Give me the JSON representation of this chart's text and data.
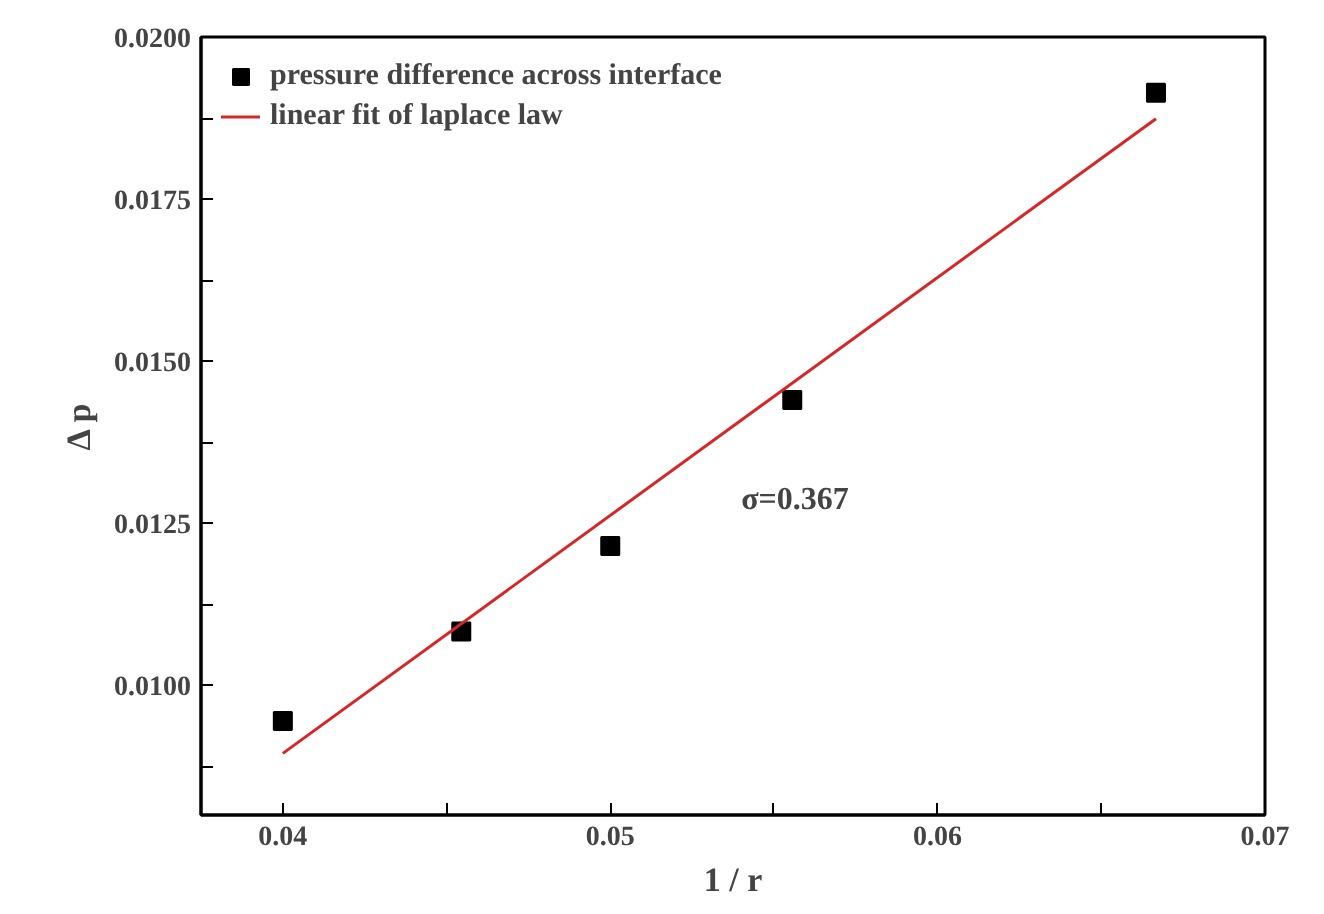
{
  "chart_data": {
    "type": "scatter",
    "xlabel": "1 / r",
    "ylabel": "Δ p",
    "xlim": [
      0.0375,
      0.07
    ],
    "ylim": [
      0.008,
      0.02
    ],
    "xticks": [
      0.04,
      {
        "value": 0.045,
        "label": null
      },
      0.05,
      {
        "value": 0.055,
        "label": null
      },
      0.06,
      {
        "value": 0.065,
        "label": null
      },
      0.07
    ],
    "yticks": [
      {
        "value": 0.00875,
        "label": null
      },
      {
        "value": 0.01,
        "label": "0.0100"
      },
      {
        "value": 0.01125,
        "label": null
      },
      0.0125,
      {
        "value": 0.01375,
        "label": null
      },
      {
        "value": 0.015,
        "label": "0.0150"
      },
      {
        "value": 0.01625,
        "label": null
      },
      0.0175,
      {
        "value": 0.01875,
        "label": null
      },
      {
        "value": 0.02,
        "label": "0.0200"
      }
    ],
    "series": [
      {
        "name": "pressure difference across interface",
        "marker": "square",
        "color": "#000000",
        "x": [
          0.04,
          0.04545,
          0.05,
          0.05556,
          0.06667
        ],
        "values": [
          0.00945,
          0.01083,
          0.01215,
          0.0144,
          0.01914
        ]
      },
      {
        "name": "linear fit of laplace law",
        "type": "line",
        "marker": "none",
        "color": "#d62728",
        "x": [
          0.04,
          0.06667
        ],
        "values": [
          0.00895,
          0.01874
        ]
      }
    ],
    "annotations": [
      "σ=0.367"
    ],
    "legend": "top left",
    "grid": false
  }
}
